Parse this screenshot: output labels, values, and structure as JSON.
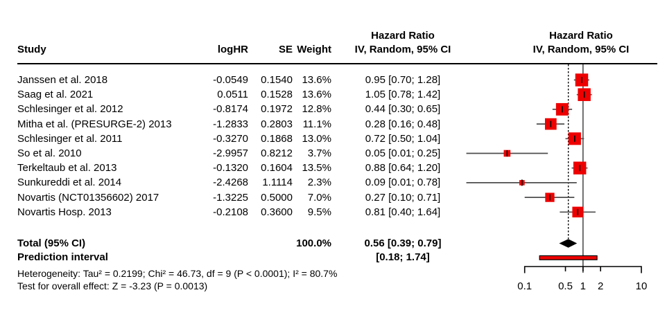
{
  "header": {
    "study": "Study",
    "loghr": "logHR",
    "se": "SE",
    "weight": "Weight",
    "ci_col_line1": "Hazard Ratio",
    "ci_col_line2": "IV, Random, 95% CI",
    "plot_col_line1": "Hazard Ratio",
    "plot_col_line2": "IV, Random, 95% CI"
  },
  "colors": {
    "square": "#ee0000",
    "diamond": "#000000",
    "prediction_fill": "#ee0000",
    "prediction_stroke": "#000000",
    "ci_line": "#4d4d4d",
    "ref_line": "#4d4d4d",
    "dotted_line": "#000000",
    "axis": "#000000",
    "marker_tick": "#000000"
  },
  "chart_data": {
    "type": "forest",
    "effect_measure": "Hazard Ratio",
    "model": "IV, Random, 95% CI",
    "x_scale": "log10",
    "xlim": [
      0.1,
      10
    ],
    "x_ticks": [
      {
        "v": 0.1,
        "label": "0.1",
        "end": true
      },
      {
        "v": 0.5,
        "label": "0.5",
        "end": false
      },
      {
        "v": 1,
        "label": "1",
        "end": false
      },
      {
        "v": 2,
        "label": "2",
        "end": false
      },
      {
        "v": 10,
        "label": "10",
        "end": true
      }
    ],
    "ref_line_value": 1,
    "dotted_line_value": 0.56,
    "studies": [
      {
        "name": "Janssen et al. 2018",
        "logHR": "-0.0549",
        "se": "0.1540",
        "weight": "13.6%",
        "weight_val": 13.6,
        "ci_text": "0.95 [0.70; 1.28]",
        "hr": 0.95,
        "lo": 0.7,
        "hi": 1.28
      },
      {
        "name": "Saag et al. 2021",
        "logHR": "0.0511",
        "se": "0.1528",
        "weight": "13.6%",
        "weight_val": 13.6,
        "ci_text": "1.05 [0.78; 1.42]",
        "hr": 1.05,
        "lo": 0.78,
        "hi": 1.42
      },
      {
        "name": "Schlesinger et al. 2012",
        "logHR": "-0.8174",
        "se": "0.1972",
        "weight": "12.8%",
        "weight_val": 12.8,
        "ci_text": "0.44 [0.30; 0.65]",
        "hr": 0.44,
        "lo": 0.3,
        "hi": 0.65
      },
      {
        "name": "Mitha et al. (PRESURGE-2) 2013",
        "logHR": "-1.2833",
        "se": "0.2803",
        "weight": "11.1%",
        "weight_val": 11.1,
        "ci_text": "0.28 [0.16; 0.48]",
        "hr": 0.28,
        "lo": 0.16,
        "hi": 0.48
      },
      {
        "name": "Schlesinger et al. 2011",
        "logHR": "-0.3270",
        "se": "0.1868",
        "weight": "13.0%",
        "weight_val": 13.0,
        "ci_text": "0.72 [0.50; 1.04]",
        "hr": 0.72,
        "lo": 0.5,
        "hi": 1.04
      },
      {
        "name": "So et al. 2010",
        "logHR": "-2.9957",
        "se": "0.8212",
        "weight": "3.7%",
        "weight_val": 3.7,
        "ci_text": "0.05 [0.01; 0.25]",
        "hr": 0.05,
        "lo": 0.01,
        "hi": 0.25
      },
      {
        "name": "Terkeltaub et al. 2013",
        "logHR": "-0.1320",
        "se": "0.1604",
        "weight": "13.5%",
        "weight_val": 13.5,
        "ci_text": "0.88 [0.64; 1.20]",
        "hr": 0.88,
        "lo": 0.64,
        "hi": 1.2
      },
      {
        "name": "Sunkureddi et al. 2014",
        "logHR": "-2.4268",
        "se": "1.1114",
        "weight": "2.3%",
        "weight_val": 2.3,
        "ci_text": "0.09 [0.01; 0.78]",
        "hr": 0.09,
        "lo": 0.01,
        "hi": 0.78
      },
      {
        "name": "Novartis (NCT01356602) 2017",
        "logHR": "-1.3225",
        "se": "0.5000",
        "weight": "7.0%",
        "weight_val": 7.0,
        "ci_text": "0.27 [0.10; 0.71]",
        "hr": 0.27,
        "lo": 0.1,
        "hi": 0.71
      },
      {
        "name": "Novartis Hosp. 2013",
        "logHR": "-0.2108",
        "se": "0.3600",
        "weight": "9.5%",
        "weight_val": 9.5,
        "ci_text": "0.81 [0.40; 1.64]",
        "hr": 0.81,
        "lo": 0.4,
        "hi": 1.64
      }
    ],
    "total": {
      "label": "Total (95% CI)",
      "weight": "100.0%",
      "ci_text": "0.56 [0.39; 0.79]",
      "hr": 0.56,
      "lo": 0.39,
      "hi": 0.79
    },
    "prediction_interval": {
      "label": "Prediction interval",
      "ci_text": "[0.18; 1.74]",
      "lo": 0.18,
      "hi": 1.74
    },
    "heterogeneity": "Heterogeneity: Tau² = 0.2199; Chi² = 46.73, df = 9 (P < 0.0001); I² = 80.7%",
    "overall_test": "Test for overall effect: Z = -3.23 (P = 0.0013)"
  }
}
